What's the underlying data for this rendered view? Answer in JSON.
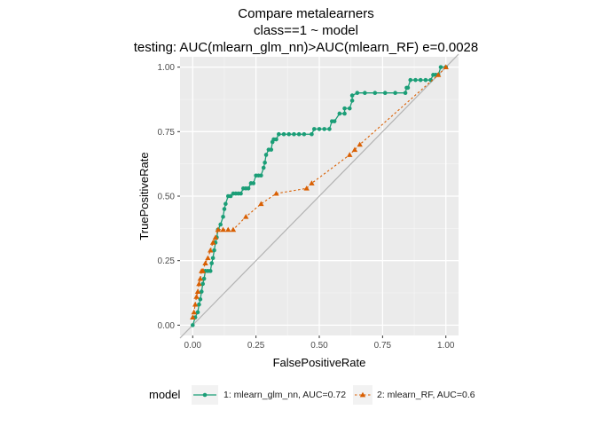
{
  "chart_data": {
    "type": "line",
    "title_lines": [
      "Compare metalearners",
      "class==1 ~ model",
      "testing: AUC(mlearn_glm_nn)>AUC(mlearn_RF) e=0.0028"
    ],
    "xlabel": "FalsePositiveRate",
    "ylabel": "TruePositiveRate",
    "xlim": [
      -0.05,
      1.05
    ],
    "ylim": [
      -0.04,
      1.04
    ],
    "x_ticks": [
      0.0,
      0.25,
      0.5,
      0.75,
      1.0
    ],
    "x_tick_labels": [
      "0.00",
      "0.25",
      "0.50",
      "0.75",
      "1.00"
    ],
    "y_ticks": [
      0.0,
      0.25,
      0.5,
      0.75,
      1.0
    ],
    "y_tick_labels": [
      "0.00",
      "0.25",
      "0.50",
      "0.75",
      "1.00"
    ],
    "grid": true,
    "reference_line": {
      "x": [
        -0.05,
        1.05
      ],
      "y": [
        -0.05,
        1.05
      ],
      "color": "#b3b3b3"
    },
    "legend": {
      "title": "model",
      "position": "bottom"
    },
    "series": [
      {
        "name": "1: mlearn_glm_nn, AUC=0.72",
        "color": "#1b9e77",
        "marker": "circle",
        "linestyle": "solid",
        "x": [
          0.0,
          0.01,
          0.02,
          0.025,
          0.03,
          0.035,
          0.04,
          0.045,
          0.05,
          0.06,
          0.07,
          0.075,
          0.08,
          0.085,
          0.09,
          0.095,
          0.1,
          0.11,
          0.12,
          0.125,
          0.13,
          0.14,
          0.15,
          0.16,
          0.17,
          0.18,
          0.19,
          0.2,
          0.21,
          0.22,
          0.23,
          0.24,
          0.25,
          0.26,
          0.27,
          0.28,
          0.285,
          0.29,
          0.3,
          0.31,
          0.315,
          0.32,
          0.33,
          0.34,
          0.36,
          0.38,
          0.4,
          0.42,
          0.44,
          0.47,
          0.48,
          0.5,
          0.52,
          0.54,
          0.55,
          0.56,
          0.58,
          0.6,
          0.6,
          0.62,
          0.63,
          0.63,
          0.65,
          0.68,
          0.72,
          0.76,
          0.8,
          0.84,
          0.845,
          0.85,
          0.86,
          0.88,
          0.9,
          0.92,
          0.94,
          0.95,
          0.96,
          0.97,
          0.98,
          1.0
        ],
        "y": [
          0.0,
          0.03,
          0.05,
          0.08,
          0.1,
          0.13,
          0.16,
          0.18,
          0.21,
          0.21,
          0.21,
          0.24,
          0.26,
          0.29,
          0.32,
          0.34,
          0.37,
          0.39,
          0.42,
          0.45,
          0.47,
          0.5,
          0.5,
          0.51,
          0.51,
          0.51,
          0.51,
          0.53,
          0.53,
          0.53,
          0.55,
          0.55,
          0.58,
          0.58,
          0.58,
          0.61,
          0.63,
          0.66,
          0.68,
          0.68,
          0.71,
          0.72,
          0.72,
          0.74,
          0.74,
          0.74,
          0.74,
          0.74,
          0.74,
          0.74,
          0.76,
          0.76,
          0.76,
          0.76,
          0.79,
          0.79,
          0.82,
          0.82,
          0.84,
          0.84,
          0.87,
          0.89,
          0.9,
          0.9,
          0.9,
          0.9,
          0.9,
          0.9,
          0.92,
          0.92,
          0.95,
          0.95,
          0.95,
          0.95,
          0.95,
          0.97,
          0.97,
          0.97,
          1.0,
          1.0
        ]
      },
      {
        "name": "2: mlearn_RF, AUC=0.6",
        "color": "#d95f02",
        "marker": "triangle",
        "linestyle": "dashed",
        "x": [
          0.0,
          0.005,
          0.01,
          0.015,
          0.02,
          0.025,
          0.03,
          0.035,
          0.04,
          0.05,
          0.06,
          0.07,
          0.08,
          0.09,
          0.1,
          0.12,
          0.14,
          0.16,
          0.21,
          0.27,
          0.33,
          0.45,
          0.47,
          0.62,
          0.64,
          0.66,
          0.97,
          1.0
        ],
        "y": [
          0.03,
          0.05,
          0.08,
          0.11,
          0.13,
          0.16,
          0.18,
          0.21,
          0.21,
          0.24,
          0.26,
          0.29,
          0.32,
          0.34,
          0.37,
          0.37,
          0.37,
          0.37,
          0.42,
          0.47,
          0.51,
          0.53,
          0.55,
          0.66,
          0.68,
          0.7,
          0.97,
          1.0
        ]
      }
    ]
  }
}
